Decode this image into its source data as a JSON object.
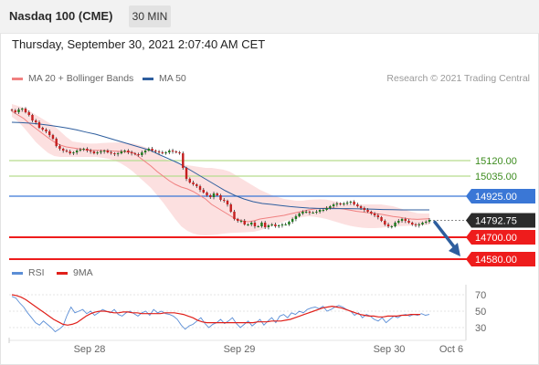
{
  "header": {
    "instrument": "Nasdaq 100 (CME)",
    "interval": "30 MIN",
    "datetime": "Thursday, September 30, 2021 2:07:40 AM CET"
  },
  "legend": {
    "bollinger": {
      "label": "MA 20 + Bollinger Bands",
      "color": "#f08080"
    },
    "ma50": {
      "label": "MA 50",
      "color": "#2e5e9e"
    },
    "rsi": {
      "label": "RSI",
      "color": "#5b8ed6"
    },
    "rsi_ma": {
      "label": "9MA",
      "color": "#e0201a"
    },
    "credit": "Research © 2021 Trading Central"
  },
  "colors": {
    "resistance_green": "#b6dc8e",
    "blue_level": "#3a77d6",
    "support_red": "#ee1c1c",
    "price_tag": "#2b2b2b",
    "band_fill": "#fbd5d5",
    "candle_up": "#1f7a1f",
    "candle_down": "#c42020",
    "arrow": "#2e5e9e"
  },
  "chart_data": [
    {
      "type": "candlestick",
      "x_ticks": [
        "Sep 28",
        "Sep 29",
        "Sep 30",
        "Oct 6"
      ],
      "ylim": [
        14550,
        15500
      ],
      "levels": [
        {
          "value": 15120,
          "label": "15120.00",
          "kind": "resistance"
        },
        {
          "value": 15035,
          "label": "15035.00",
          "kind": "resistance"
        },
        {
          "value": 14925,
          "label": "14925.00",
          "kind": "pivot"
        },
        {
          "value": 14700,
          "label": "14700.00",
          "kind": "support"
        },
        {
          "value": 14580,
          "label": "14580.00",
          "kind": "support"
        }
      ],
      "last_price": {
        "value": 14792.75,
        "label": "14792.75"
      },
      "close": [
        15395,
        15385,
        15400,
        15405,
        15385,
        15370,
        15340,
        15330,
        15300,
        15290,
        15280,
        15260,
        15240,
        15200,
        15185,
        15175,
        15170,
        15160,
        15165,
        15175,
        15180,
        15185,
        15175,
        15170,
        15160,
        15165,
        15170,
        15175,
        15165,
        15160,
        15155,
        15160,
        15170,
        15175,
        15165,
        15160,
        15155,
        15150,
        15165,
        15175,
        15185,
        15175,
        15170,
        15165,
        15160,
        15165,
        15175,
        15170,
        15165,
        15160,
        15080,
        15020,
        15000,
        14990,
        14980,
        14960,
        14945,
        14930,
        14920,
        14940,
        14930,
        14905,
        14900,
        14880,
        14840,
        14800,
        14790,
        14790,
        14770,
        14770,
        14780,
        14760,
        14760,
        14780,
        14755,
        14765,
        14770,
        14760,
        14765,
        14770,
        14770,
        14785,
        14800,
        14815,
        14830,
        14840,
        14840,
        14835,
        14835,
        14840,
        14850,
        14850,
        14860,
        14870,
        14880,
        14885,
        14880,
        14885,
        14890,
        14895,
        14880,
        14870,
        14860,
        14850,
        14840,
        14830,
        14820,
        14810,
        14790,
        14770,
        14760,
        14760,
        14780,
        14790,
        14800,
        14790,
        14780,
        14770,
        14765,
        14770,
        14780,
        14785,
        14795
      ],
      "bollinger": {
        "upper": [
          15430,
          15420,
          15410,
          15390,
          15370,
          15350,
          15330,
          15310,
          15280,
          15250,
          15225,
          15220,
          15215,
          15213,
          15214,
          15216,
          15218,
          15219,
          15220,
          15217,
          15214,
          15205,
          15195,
          15180,
          15160,
          15135,
          15120,
          15110,
          15100,
          15095,
          15090,
          15085,
          15080,
          15080,
          15075,
          15070,
          15060,
          15040,
          15020,
          15000,
          14980,
          14960,
          14945,
          14930,
          14920,
          14910,
          14905,
          14900,
          14900,
          14905,
          14907,
          14908,
          14906,
          14900,
          14892,
          14886,
          14880,
          14880,
          14880,
          14880,
          14880,
          14880,
          14875,
          14870,
          14860,
          14850,
          14840,
          14832,
          14830,
          14830
        ],
        "middle": [
          15390,
          15370,
          15350,
          15320,
          15295,
          15270,
          15245,
          15222,
          15205,
          15195,
          15190,
          15185,
          15180,
          15177,
          15176,
          15175,
          15174,
          15172,
          15170,
          15168,
          15165,
          15140,
          15115,
          15090,
          15060,
          15035,
          15010,
          14990,
          14975,
          14965,
          14950,
          14930,
          14910,
          14880,
          14860,
          14840,
          14820,
          14800,
          14790,
          14785,
          14790,
          14800,
          14805,
          14810,
          14815,
          14820,
          14828,
          14835,
          14842,
          14850,
          14855,
          14858,
          14860,
          14860,
          14858,
          14854,
          14848,
          14842,
          14838,
          14834,
          14830,
          14826,
          14820,
          14814,
          14810,
          14804,
          14800,
          14798,
          14800,
          14802
        ],
        "lower": [
          15360,
          15335,
          15300,
          15260,
          15220,
          15190,
          15162,
          15145,
          15140,
          15140,
          15140,
          15140,
          15140,
          15140,
          15140,
          15135,
          15130,
          15120,
          15105,
          15085,
          15060,
          15030,
          15000,
          14970,
          14930,
          14890,
          14845,
          14800,
          14760,
          14735,
          14720,
          14712,
          14710,
          14712,
          14715,
          14720,
          14723,
          14725,
          14726,
          14728,
          14730,
          14738,
          14750,
          14762,
          14775,
          14787,
          14797,
          14805,
          14810,
          14815,
          14812,
          14807,
          14800,
          14790,
          14780,
          14770,
          14762,
          14756,
          14752,
          14750,
          14750,
          14752,
          14755,
          14758,
          14760,
          14762,
          14764,
          14765,
          14767,
          14768
        ]
      },
      "ma50": [
        15330,
        15328,
        15325,
        15320,
        15314,
        15306,
        15298,
        15288,
        15276,
        15265,
        15250,
        15235,
        15220,
        15205,
        15190,
        15175,
        15150,
        15128,
        15105,
        15075,
        15045,
        15015,
        14985,
        14955,
        14930,
        14910,
        14895,
        14885,
        14880,
        14874,
        14868,
        14864,
        14860,
        14858,
        14857,
        14857,
        14857,
        14856,
        14855,
        14854,
        14852,
        14851,
        14850,
        14850,
        14850,
        14850
      ]
    },
    {
      "type": "line",
      "ylim": [
        20,
        80
      ],
      "y_ticks": [
        70,
        50,
        30
      ],
      "series": [
        {
          "name": "RSI",
          "values": [
            68,
            66,
            60,
            55,
            48,
            42,
            36,
            33,
            38,
            34,
            30,
            25,
            28,
            32,
            45,
            55,
            48,
            50,
            52,
            47,
            50,
            45,
            48,
            52,
            50,
            48,
            52,
            46,
            44,
            48,
            50,
            47,
            44,
            48,
            50,
            45,
            52,
            48,
            50,
            47,
            46,
            44,
            40,
            33,
            28,
            32,
            34,
            38,
            42,
            35,
            30,
            34,
            36,
            40,
            35,
            38,
            42,
            35,
            30,
            34,
            38,
            32,
            36,
            40,
            33,
            38,
            42,
            36,
            44,
            46,
            42,
            48,
            46,
            50,
            48,
            52,
            54,
            55,
            53,
            56,
            50,
            52,
            55,
            57,
            55,
            52,
            50,
            45,
            48,
            42,
            46,
            44,
            40,
            38,
            42,
            36,
            40,
            44,
            42,
            45,
            46,
            44,
            46,
            45,
            47,
            45,
            46
          ]
        },
        {
          "name": "9MA",
          "values": [
            70,
            69,
            67,
            64,
            60,
            56,
            52,
            48,
            44,
            40,
            37,
            34,
            33,
            34,
            36,
            40,
            44,
            47,
            49,
            50,
            50,
            49,
            48,
            48,
            49,
            49,
            48,
            48,
            47,
            47,
            47,
            47,
            47,
            48,
            48,
            48,
            47,
            46,
            44,
            42,
            39,
            37,
            36,
            36,
            36,
            36,
            36,
            36,
            36,
            36,
            36,
            36,
            36,
            37,
            37,
            37,
            38,
            38,
            38,
            39,
            40,
            42,
            44,
            46,
            48,
            50,
            52,
            54,
            55,
            56,
            55,
            54,
            52,
            50,
            48,
            46,
            45,
            44,
            44,
            43,
            43,
            44,
            44,
            44,
            45,
            45,
            46,
            46,
            46
          ]
        }
      ]
    }
  ]
}
